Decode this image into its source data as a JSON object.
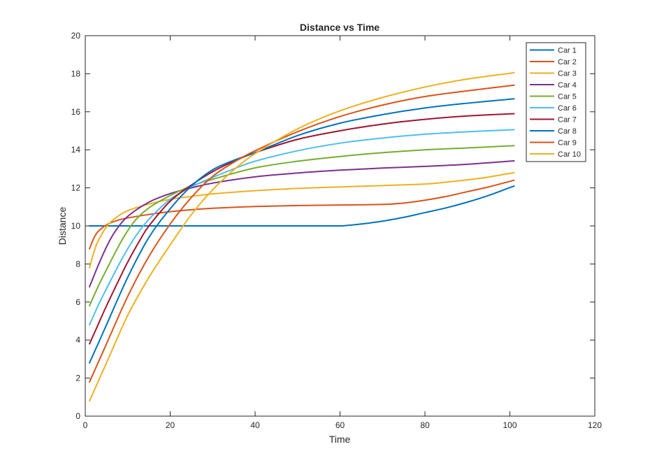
{
  "chart_data": {
    "type": "line",
    "title": "Distance vs Time",
    "xlabel": "Time",
    "ylabel": "Distance",
    "xlim": [
      0,
      120
    ],
    "ylim": [
      0,
      20
    ],
    "xticks": [
      0,
      20,
      40,
      60,
      80,
      100,
      120
    ],
    "yticks": [
      0,
      2,
      4,
      6,
      8,
      10,
      12,
      14,
      16,
      18,
      20
    ],
    "grid": false,
    "legend_position": "top-right",
    "series": [
      {
        "name": "Car 1",
        "color": "#0072BD",
        "x": [
          1,
          5,
          10,
          20,
          30,
          40,
          50,
          55,
          60,
          62,
          65,
          70,
          75,
          80,
          85,
          90,
          95,
          101
        ],
        "y": [
          10,
          10,
          10,
          10,
          10,
          10,
          10,
          10,
          10,
          10.03,
          10.1,
          10.25,
          10.45,
          10.7,
          10.95,
          11.25,
          11.6,
          12.1
        ]
      },
      {
        "name": "Car 2",
        "color": "#D95319",
        "x": [
          1,
          2,
          3,
          5,
          7,
          10,
          15,
          20,
          25,
          30,
          40,
          50,
          60,
          70,
          75,
          80,
          85,
          90,
          95,
          101
        ],
        "y": [
          8.8,
          9.35,
          9.7,
          10.05,
          10.25,
          10.42,
          10.6,
          10.75,
          10.85,
          10.93,
          11.02,
          11.07,
          11.1,
          11.13,
          11.2,
          11.35,
          11.55,
          11.8,
          12.05,
          12.4
        ]
      },
      {
        "name": "Car 3",
        "color": "#EDB120",
        "x": [
          1,
          2,
          3,
          5,
          7,
          10,
          15,
          20,
          25,
          30,
          40,
          50,
          60,
          70,
          80,
          85,
          90,
          95,
          101
        ],
        "y": [
          7.8,
          8.6,
          9.2,
          9.95,
          10.4,
          10.8,
          11.15,
          11.4,
          11.55,
          11.68,
          11.85,
          11.97,
          12.05,
          12.12,
          12.2,
          12.3,
          12.42,
          12.57,
          12.8
        ]
      },
      {
        "name": "Car 4",
        "color": "#7E2F8E",
        "x": [
          1,
          3,
          5,
          7,
          10,
          15,
          20,
          25,
          30,
          40,
          50,
          60,
          70,
          80,
          90,
          101
        ],
        "y": [
          6.8,
          7.9,
          8.9,
          9.7,
          10.5,
          11.25,
          11.7,
          12.0,
          12.25,
          12.58,
          12.78,
          12.93,
          13.04,
          13.13,
          13.24,
          13.42
        ]
      },
      {
        "name": "Car 5",
        "color": "#77AC30",
        "x": [
          1,
          3,
          5,
          8,
          10,
          12,
          15,
          20,
          25,
          30,
          40,
          50,
          60,
          70,
          80,
          90,
          101
        ],
        "y": [
          5.8,
          6.8,
          7.7,
          9.0,
          9.75,
          10.35,
          10.95,
          11.6,
          12.1,
          12.45,
          13.05,
          13.4,
          13.65,
          13.85,
          14.0,
          14.1,
          14.22
        ]
      },
      {
        "name": "Car 6",
        "color": "#4DBEEE",
        "x": [
          1,
          3,
          5,
          8,
          10,
          12,
          15,
          20,
          25,
          30,
          35,
          40,
          50,
          60,
          70,
          80,
          90,
          101
        ],
        "y": [
          4.8,
          5.8,
          6.7,
          8.0,
          8.8,
          9.5,
          10.35,
          11.4,
          12.05,
          12.55,
          13.0,
          13.4,
          13.95,
          14.35,
          14.62,
          14.82,
          14.95,
          15.06
        ]
      },
      {
        "name": "Car 7",
        "color": "#A2142F",
        "x": [
          1,
          3,
          5,
          8,
          10,
          13,
          15,
          20,
          25,
          30,
          35,
          40,
          50,
          60,
          70,
          80,
          90,
          101
        ],
        "y": [
          3.8,
          4.8,
          5.8,
          7.2,
          8.1,
          9.3,
          10.0,
          11.3,
          12.15,
          12.85,
          13.4,
          13.85,
          14.55,
          15.0,
          15.35,
          15.6,
          15.78,
          15.9
        ]
      },
      {
        "name": "Car 8",
        "color": "#0072BD",
        "x": [
          1,
          5,
          10,
          15,
          20,
          25,
          30,
          35,
          40,
          50,
          60,
          70,
          80,
          90,
          101
        ],
        "y": [
          2.8,
          4.8,
          7.3,
          9.4,
          10.9,
          12.1,
          12.95,
          13.45,
          13.85,
          14.75,
          15.4,
          15.85,
          16.2,
          16.45,
          16.68
        ]
      },
      {
        "name": "Car 9",
        "color": "#D95319",
        "x": [
          1,
          5,
          10,
          15,
          20,
          25,
          30,
          35,
          40,
          50,
          60,
          70,
          80,
          90,
          101
        ],
        "y": [
          1.8,
          3.8,
          6.3,
          8.4,
          10.1,
          11.5,
          12.6,
          13.35,
          13.95,
          14.95,
          15.75,
          16.35,
          16.8,
          17.1,
          17.4
        ]
      },
      {
        "name": "Car 10",
        "color": "#EDB120",
        "x": [
          1,
          5,
          10,
          15,
          20,
          25,
          30,
          35,
          40,
          50,
          60,
          70,
          80,
          90,
          101
        ],
        "y": [
          0.8,
          2.8,
          5.3,
          7.3,
          9.0,
          10.6,
          11.9,
          12.95,
          13.8,
          15.1,
          16.05,
          16.75,
          17.3,
          17.72,
          18.05
        ]
      }
    ]
  }
}
